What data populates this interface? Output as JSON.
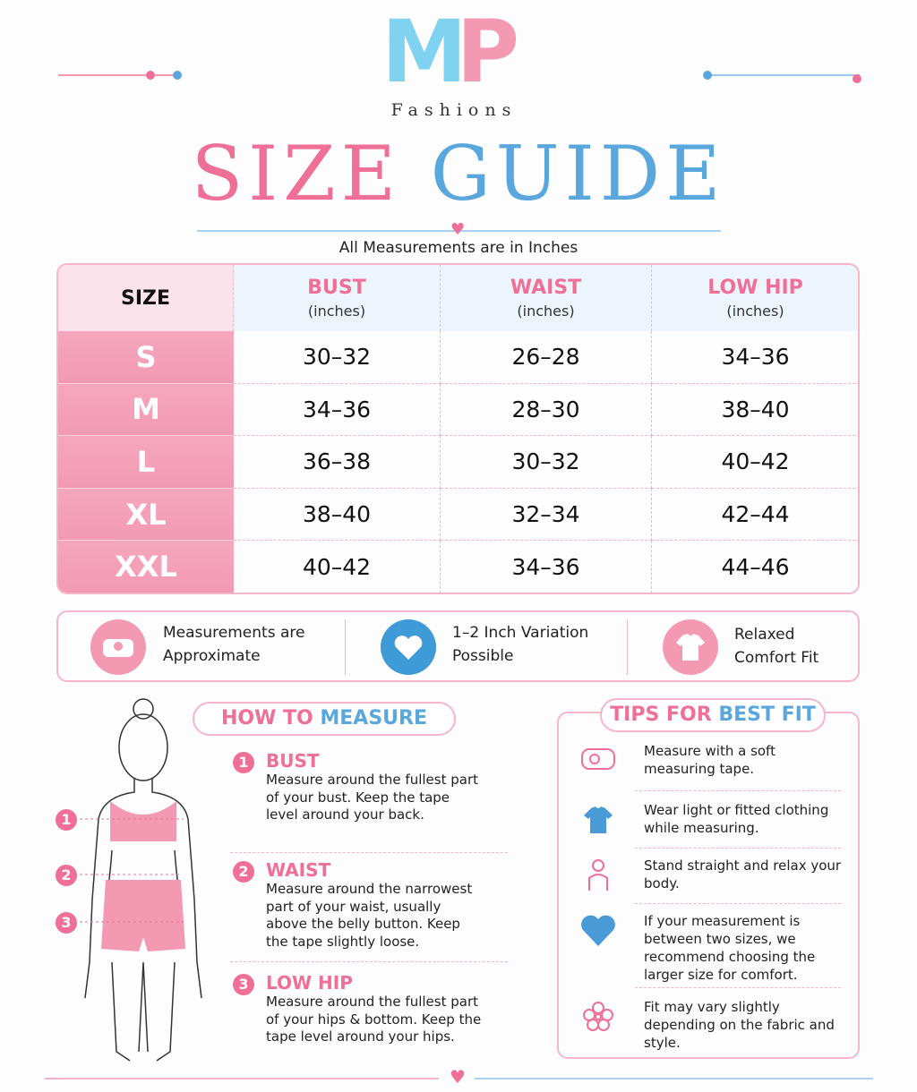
{
  "brand": {
    "logo_left": "M",
    "logo_right": "P",
    "name": "Fashions"
  },
  "title": {
    "part1": "SIZE",
    "part2": "GUIDE"
  },
  "subtitle": "All Measurements are in Inches",
  "table": {
    "header": [
      {
        "label": "SIZE"
      },
      {
        "label": "BUST",
        "unit": "(inches)"
      },
      {
        "label": "WAIST",
        "unit": "(inches)"
      },
      {
        "label": "LOW HIP",
        "unit": "(inches)"
      }
    ],
    "rows": [
      [
        "S",
        "30–32",
        "26–28",
        "34–36"
      ],
      [
        "M",
        "34–36",
        "28–30",
        "38–40"
      ],
      [
        "L",
        "36–38",
        "30–32",
        "40–42"
      ],
      [
        "XL",
        "38–40",
        "32–34",
        "42–44"
      ],
      [
        "XXL",
        "40–42",
        "34–36",
        "44–46"
      ]
    ]
  },
  "notes": [
    "Measurements are Approximate",
    "1–2 Inch Variation Possible",
    "Relaxed Comfort Fit"
  ],
  "how_to_measure": {
    "title_part1": "HOW TO",
    "title_part2": "MEASURE",
    "steps": [
      {
        "number": "1",
        "title": "BUST",
        "text": "Measure around the fullest part of your bust. Keep the tape level around your back."
      },
      {
        "number": "2",
        "title": "WAIST",
        "text": "Measure around the narrowest part of your waist, usually above the belly button. Keep the tape slightly loose."
      },
      {
        "number": "3",
        "title": "LOW HIP",
        "text": "Measure around the fullest part of your hips & bottom. Keep the tape level around your hips."
      }
    ]
  },
  "tips": {
    "title_part1": "TIPS FOR",
    "title_part2": "BEST FIT",
    "items": [
      "Measure with a soft measuring tape.",
      "Wear light or fitted clothing while measuring.",
      "Stand straight and relax your body.",
      "If your measurement is between two sizes, we recommend choosing the larger size for comfort.",
      "Fit may vary slightly depending on the fabric and style."
    ]
  }
}
